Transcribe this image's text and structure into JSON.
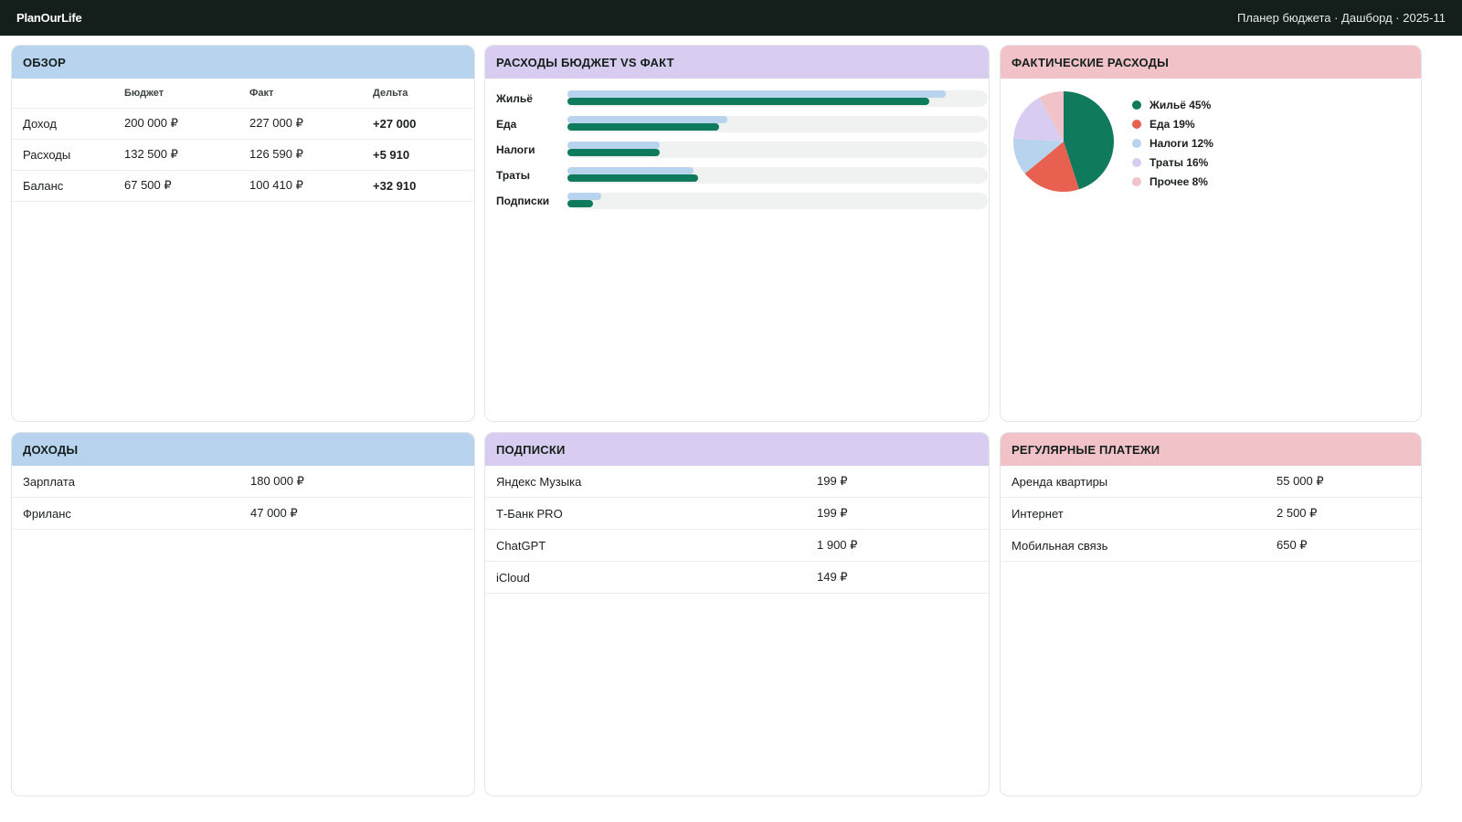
{
  "header": {
    "brand": "PlanOurLife",
    "info": "Планер бюджета · Дашборд · 2025-11"
  },
  "overview": {
    "title": "ОБЗОР",
    "columns": [
      "",
      "Бюджет",
      "Факт",
      "Дельта"
    ],
    "rows": [
      {
        "label": "Доход",
        "budget": "200 000 ₽",
        "actual": "227 000 ₽",
        "delta": "+27 000"
      },
      {
        "label": "Расходы",
        "budget": "132 500 ₽",
        "actual": "126 590 ₽",
        "delta": "+5 910"
      },
      {
        "label": "Баланс",
        "budget": "67 500 ₽",
        "actual": "100 410 ₽",
        "delta": "+32 910"
      }
    ]
  },
  "budget_vs_actual": {
    "title": "РАСХОДЫ БЮДЖЕТ VS ФАКТ"
  },
  "actual_expenses": {
    "title": "ФАКТИЧЕСКИЕ РАСХОДЫ"
  },
  "chart_data": [
    {
      "type": "bar",
      "orientation": "horizontal",
      "categories": [
        "Жильё",
        "Еда",
        "Налоги",
        "Траты",
        "Подписки"
      ],
      "series": [
        {
          "values": [
            90,
            38,
            22,
            30,
            8
          ]
        },
        {
          "values": [
            86,
            36,
            22,
            31,
            6
          ]
        }
      ],
      "xlim": [
        0,
        100
      ],
      "colors": [
        "#b7d3ee",
        "#0f7a5c"
      ],
      "track_color": "#eff2f1"
    },
    {
      "type": "pie",
      "labels": [
        "Жильё 45%",
        "Еда 19%",
        "Налоги 12%",
        "Траты 16%",
        "Прочее 8%"
      ],
      "values": [
        45,
        19,
        12,
        16,
        8
      ],
      "colors": [
        "#0f7a5c",
        "#e8604f",
        "#b7d3ee",
        "#d8cdf0",
        "#f2c2c9"
      ],
      "legend": "right"
    }
  ],
  "income": {
    "title": "ДОХОДЫ",
    "rows": [
      {
        "label": "Зарплата",
        "value": "180 000 ₽"
      },
      {
        "label": "Фриланс",
        "value": "47 000 ₽"
      }
    ]
  },
  "subscriptions": {
    "title": "ПОДПИСКИ",
    "rows": [
      {
        "label": "Яндекс Музыка",
        "value": "199 ₽"
      },
      {
        "label": "Т-Банк PRO",
        "value": "199 ₽"
      },
      {
        "label": "ChatGPT",
        "value": "1 900 ₽"
      },
      {
        "label": "iCloud",
        "value": "149 ₽"
      }
    ]
  },
  "regular_payments": {
    "title": "РЕГУЛЯРНЫЕ ПЛАТЕЖИ",
    "rows": [
      {
        "label": "Аренда квартиры",
        "value": "55 000 ₽"
      },
      {
        "label": "Интернет",
        "value": "2 500 ₽"
      },
      {
        "label": "Мобильная связь",
        "value": "650 ₽"
      }
    ]
  }
}
